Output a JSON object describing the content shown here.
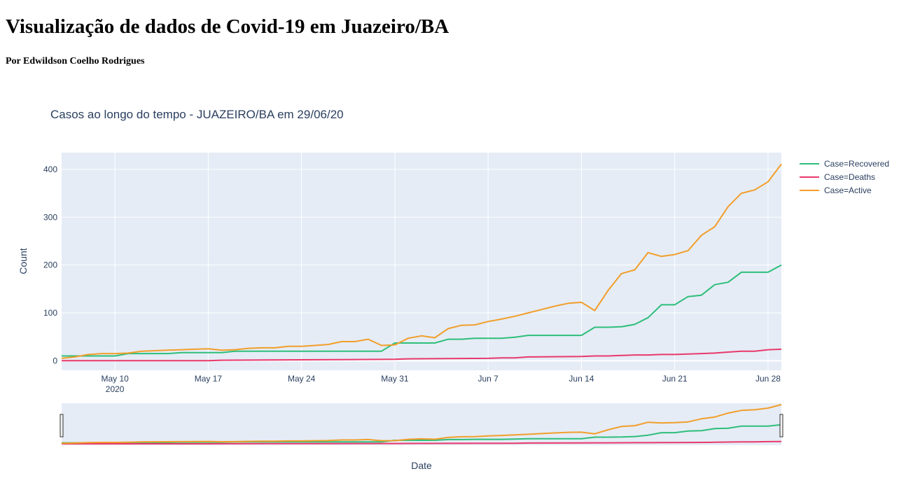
{
  "page": {
    "title": "Visualização de dados de Covid-19 em Juazeiro/BA",
    "subtitle": "Por Edwildson Coelho Rodrigues"
  },
  "colors": {
    "plot_bg": "#e5ecf6",
    "grid": "#ffffff",
    "recovered": "#2ebe7a",
    "deaths": "#e8396b",
    "active": "#f29e2a",
    "text": "#2a3f5f"
  },
  "chart_data": {
    "type": "line",
    "title": "Casos ao longo do tempo - JUAZEIRO/BA em 29/06/20",
    "xlabel": "Date",
    "ylabel": "Count",
    "x_range": [
      "2020-05-06",
      "2020-06-29"
    ],
    "ylim": [
      -20,
      435
    ],
    "y_ticks": [
      0,
      100,
      200,
      300,
      400
    ],
    "x_ticks": [
      {
        "date": "2020-05-10",
        "label": "May 10",
        "sublabel": "2020"
      },
      {
        "date": "2020-05-17",
        "label": "May 17",
        "sublabel": ""
      },
      {
        "date": "2020-05-24",
        "label": "May 24",
        "sublabel": ""
      },
      {
        "date": "2020-05-31",
        "label": "May 31",
        "sublabel": ""
      },
      {
        "date": "2020-06-07",
        "label": "Jun 7",
        "sublabel": ""
      },
      {
        "date": "2020-06-14",
        "label": "Jun 14",
        "sublabel": ""
      },
      {
        "date": "2020-06-21",
        "label": "Jun 21",
        "sublabel": ""
      },
      {
        "date": "2020-06-28",
        "label": "Jun 28",
        "sublabel": ""
      }
    ],
    "grid": true,
    "legend_position": "right",
    "range_slider": true,
    "series": [
      {
        "name": "Case=Recovered",
        "color": "#2ebe7a",
        "x": [
          "2020-05-06",
          "2020-05-07",
          "2020-05-08",
          "2020-05-09",
          "2020-05-10",
          "2020-05-11",
          "2020-05-12",
          "2020-05-13",
          "2020-05-14",
          "2020-05-15",
          "2020-05-16",
          "2020-05-17",
          "2020-05-18",
          "2020-05-19",
          "2020-05-20",
          "2020-05-21",
          "2020-05-22",
          "2020-05-23",
          "2020-05-24",
          "2020-05-25",
          "2020-05-26",
          "2020-05-27",
          "2020-05-28",
          "2020-05-29",
          "2020-05-30",
          "2020-05-31",
          "2020-06-01",
          "2020-06-02",
          "2020-06-03",
          "2020-06-04",
          "2020-06-05",
          "2020-06-06",
          "2020-06-07",
          "2020-06-08",
          "2020-06-09",
          "2020-06-10",
          "2020-06-11",
          "2020-06-12",
          "2020-06-13",
          "2020-06-14",
          "2020-06-15",
          "2020-06-16",
          "2020-06-17",
          "2020-06-18",
          "2020-06-19",
          "2020-06-20",
          "2020-06-21",
          "2020-06-22",
          "2020-06-23",
          "2020-06-24",
          "2020-06-25",
          "2020-06-26",
          "2020-06-27",
          "2020-06-28",
          "2020-06-29"
        ],
        "y": [
          10,
          10,
          10,
          10,
          10,
          15,
          15,
          15,
          15,
          17,
          17,
          17,
          17,
          20,
          20,
          20,
          20,
          20,
          20,
          20,
          20,
          20,
          20,
          20,
          20,
          37,
          37,
          37,
          37,
          45,
          45,
          47,
          47,
          47,
          49,
          53,
          53,
          53,
          53,
          53,
          70,
          70,
          71,
          76,
          90,
          117,
          117,
          134,
          137,
          159,
          164,
          185,
          185,
          185,
          200
        ]
      },
      {
        "name": "Case=Deaths",
        "color": "#e8396b",
        "x": [
          "2020-05-06",
          "2020-05-10",
          "2020-05-17",
          "2020-05-18",
          "2020-05-24",
          "2020-05-31",
          "2020-06-01",
          "2020-06-07",
          "2020-06-08",
          "2020-06-09",
          "2020-06-10",
          "2020-06-14",
          "2020-06-15",
          "2020-06-16",
          "2020-06-17",
          "2020-06-18",
          "2020-06-19",
          "2020-06-20",
          "2020-06-21",
          "2020-06-22",
          "2020-06-23",
          "2020-06-24",
          "2020-06-25",
          "2020-06-26",
          "2020-06-27",
          "2020-06-28",
          "2020-06-29"
        ],
        "y": [
          0,
          0,
          0,
          1,
          2,
          3,
          4,
          5,
          6,
          6,
          8,
          9,
          10,
          10,
          11,
          12,
          12,
          13,
          13,
          14,
          15,
          16,
          18,
          20,
          20,
          23,
          24
        ]
      },
      {
        "name": "Case=Active",
        "color": "#f29e2a",
        "x": [
          "2020-05-06",
          "2020-05-07",
          "2020-05-08",
          "2020-05-09",
          "2020-05-10",
          "2020-05-11",
          "2020-05-12",
          "2020-05-13",
          "2020-05-14",
          "2020-05-15",
          "2020-05-16",
          "2020-05-17",
          "2020-05-18",
          "2020-05-19",
          "2020-05-20",
          "2020-05-21",
          "2020-05-22",
          "2020-05-23",
          "2020-05-24",
          "2020-05-25",
          "2020-05-26",
          "2020-05-27",
          "2020-05-28",
          "2020-05-29",
          "2020-05-30",
          "2020-05-31",
          "2020-06-01",
          "2020-06-02",
          "2020-06-03",
          "2020-06-04",
          "2020-06-05",
          "2020-06-06",
          "2020-06-07",
          "2020-06-08",
          "2020-06-09",
          "2020-06-10",
          "2020-06-11",
          "2020-06-12",
          "2020-06-13",
          "2020-06-14",
          "2020-06-15",
          "2020-06-16",
          "2020-06-17",
          "2020-06-18",
          "2020-06-19",
          "2020-06-20",
          "2020-06-21",
          "2020-06-22",
          "2020-06-23",
          "2020-06-24",
          "2020-06-25",
          "2020-06-26",
          "2020-06-27",
          "2020-06-28",
          "2020-06-29"
        ],
        "y": [
          5,
          8,
          13,
          15,
          15,
          16,
          20,
          21,
          22,
          23,
          24,
          25,
          22,
          23,
          26,
          27,
          27,
          30,
          30,
          32,
          34,
          40,
          40,
          45,
          32,
          33,
          47,
          52,
          48,
          67,
          74,
          75,
          82,
          87,
          93,
          100,
          107,
          114,
          120,
          122,
          105,
          147,
          182,
          190,
          226,
          218,
          222,
          230,
          262,
          280,
          322,
          350,
          357,
          374,
          411
        ]
      }
    ]
  }
}
